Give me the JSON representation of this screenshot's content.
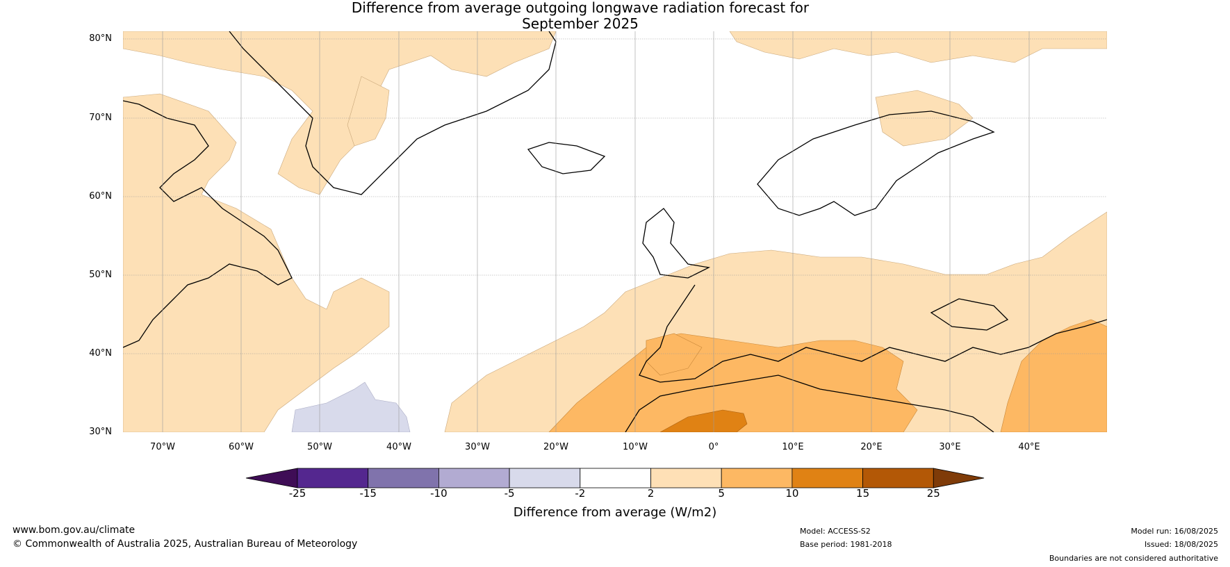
{
  "title": {
    "line1": "Difference from average outgoing longwave radiation forecast for",
    "line2": "September 2025"
  },
  "map": {
    "region": "North Atlantic and Europe",
    "lat_labels": [
      "80°N",
      "70°N",
      "60°N",
      "50°N",
      "40°N",
      "30°N"
    ],
    "lon_labels": [
      "70°W",
      "60°W",
      "50°W",
      "40°W",
      "30°W",
      "20°W",
      "10°W",
      "0°",
      "10°E",
      "20°E",
      "30°E",
      "40°E"
    ],
    "lat_range": [
      30,
      81
    ],
    "lon_range": [
      -75,
      50
    ],
    "gridlines": true
  },
  "colorbar": {
    "title": "Difference from average (W/m2)",
    "ticks": [
      "-25",
      "-15",
      "-10",
      "-5",
      "-2",
      "2",
      "5",
      "10",
      "15",
      "25"
    ],
    "colors": [
      "#3f0d56",
      "#54278f",
      "#8073ac",
      "#b2abd2",
      "#d8daeb",
      "#ffffff",
      "#fee0b6",
      "#fdb863",
      "#e08214",
      "#b35806",
      "#7f3b08"
    ]
  },
  "footer": {
    "website": "www.bom.gov.au/climate",
    "copyright": "© Commonwealth of Australia 2025, Australian Bureau of Meteorology",
    "model": "Model: ACCESS-S2",
    "base_period": "Base period: 1981-2018",
    "model_run": "Model run: 16/08/2025",
    "issued": "Issued: 18/08/2025",
    "disclaimer": "Boundaries are not considered authoritative"
  }
}
